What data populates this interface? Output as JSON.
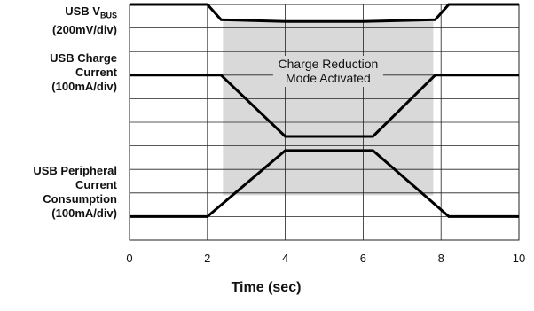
{
  "chart_data": {
    "type": "line",
    "xlabel": "Time (sec)",
    "x_ticks": [
      "0",
      "2",
      "4",
      "6",
      "8",
      "10"
    ],
    "xlim": [
      0,
      10
    ],
    "ylim": [
      0,
      10
    ],
    "grid": true,
    "trace_labels": {
      "vbus_line1": "USB V",
      "vbus_sub": "BUS",
      "vbus_line2": "(200mV/div)",
      "charge_line1": "USB Charge",
      "charge_line2": "Current",
      "charge_line3": "(100mA/div)",
      "periph_line1": "USB Peripheral",
      "periph_line2": "Current",
      "periph_line3": "Consumption",
      "periph_line4": "(100mA/div)"
    },
    "annotation": {
      "line1": "Charge Reduction",
      "line2": "Mode Activated",
      "x_start": 2.4,
      "x_end": 7.8
    },
    "series": [
      {
        "key": "vbus",
        "points": [
          [
            0,
            10.0
          ],
          [
            2,
            10.0
          ],
          [
            2.35,
            9.35
          ],
          [
            4,
            9.28
          ],
          [
            6,
            9.28
          ],
          [
            7.85,
            9.35
          ],
          [
            8.2,
            10.0
          ],
          [
            10,
            10.0
          ]
        ]
      },
      {
        "key": "charge",
        "points": [
          [
            0,
            7.0
          ],
          [
            2.35,
            7.0
          ],
          [
            4,
            4.4
          ],
          [
            6.25,
            4.4
          ],
          [
            7.85,
            7.0
          ],
          [
            10,
            7.0
          ]
        ]
      },
      {
        "key": "periph",
        "points": [
          [
            0,
            1.0
          ],
          [
            2,
            1.0
          ],
          [
            4,
            3.8
          ],
          [
            6.25,
            3.8
          ],
          [
            8.2,
            1.0
          ],
          [
            10,
            1.0
          ]
        ]
      }
    ],
    "colors": {
      "line": "#000000",
      "grid": "#222222",
      "shade": "#d9d9d9"
    }
  }
}
